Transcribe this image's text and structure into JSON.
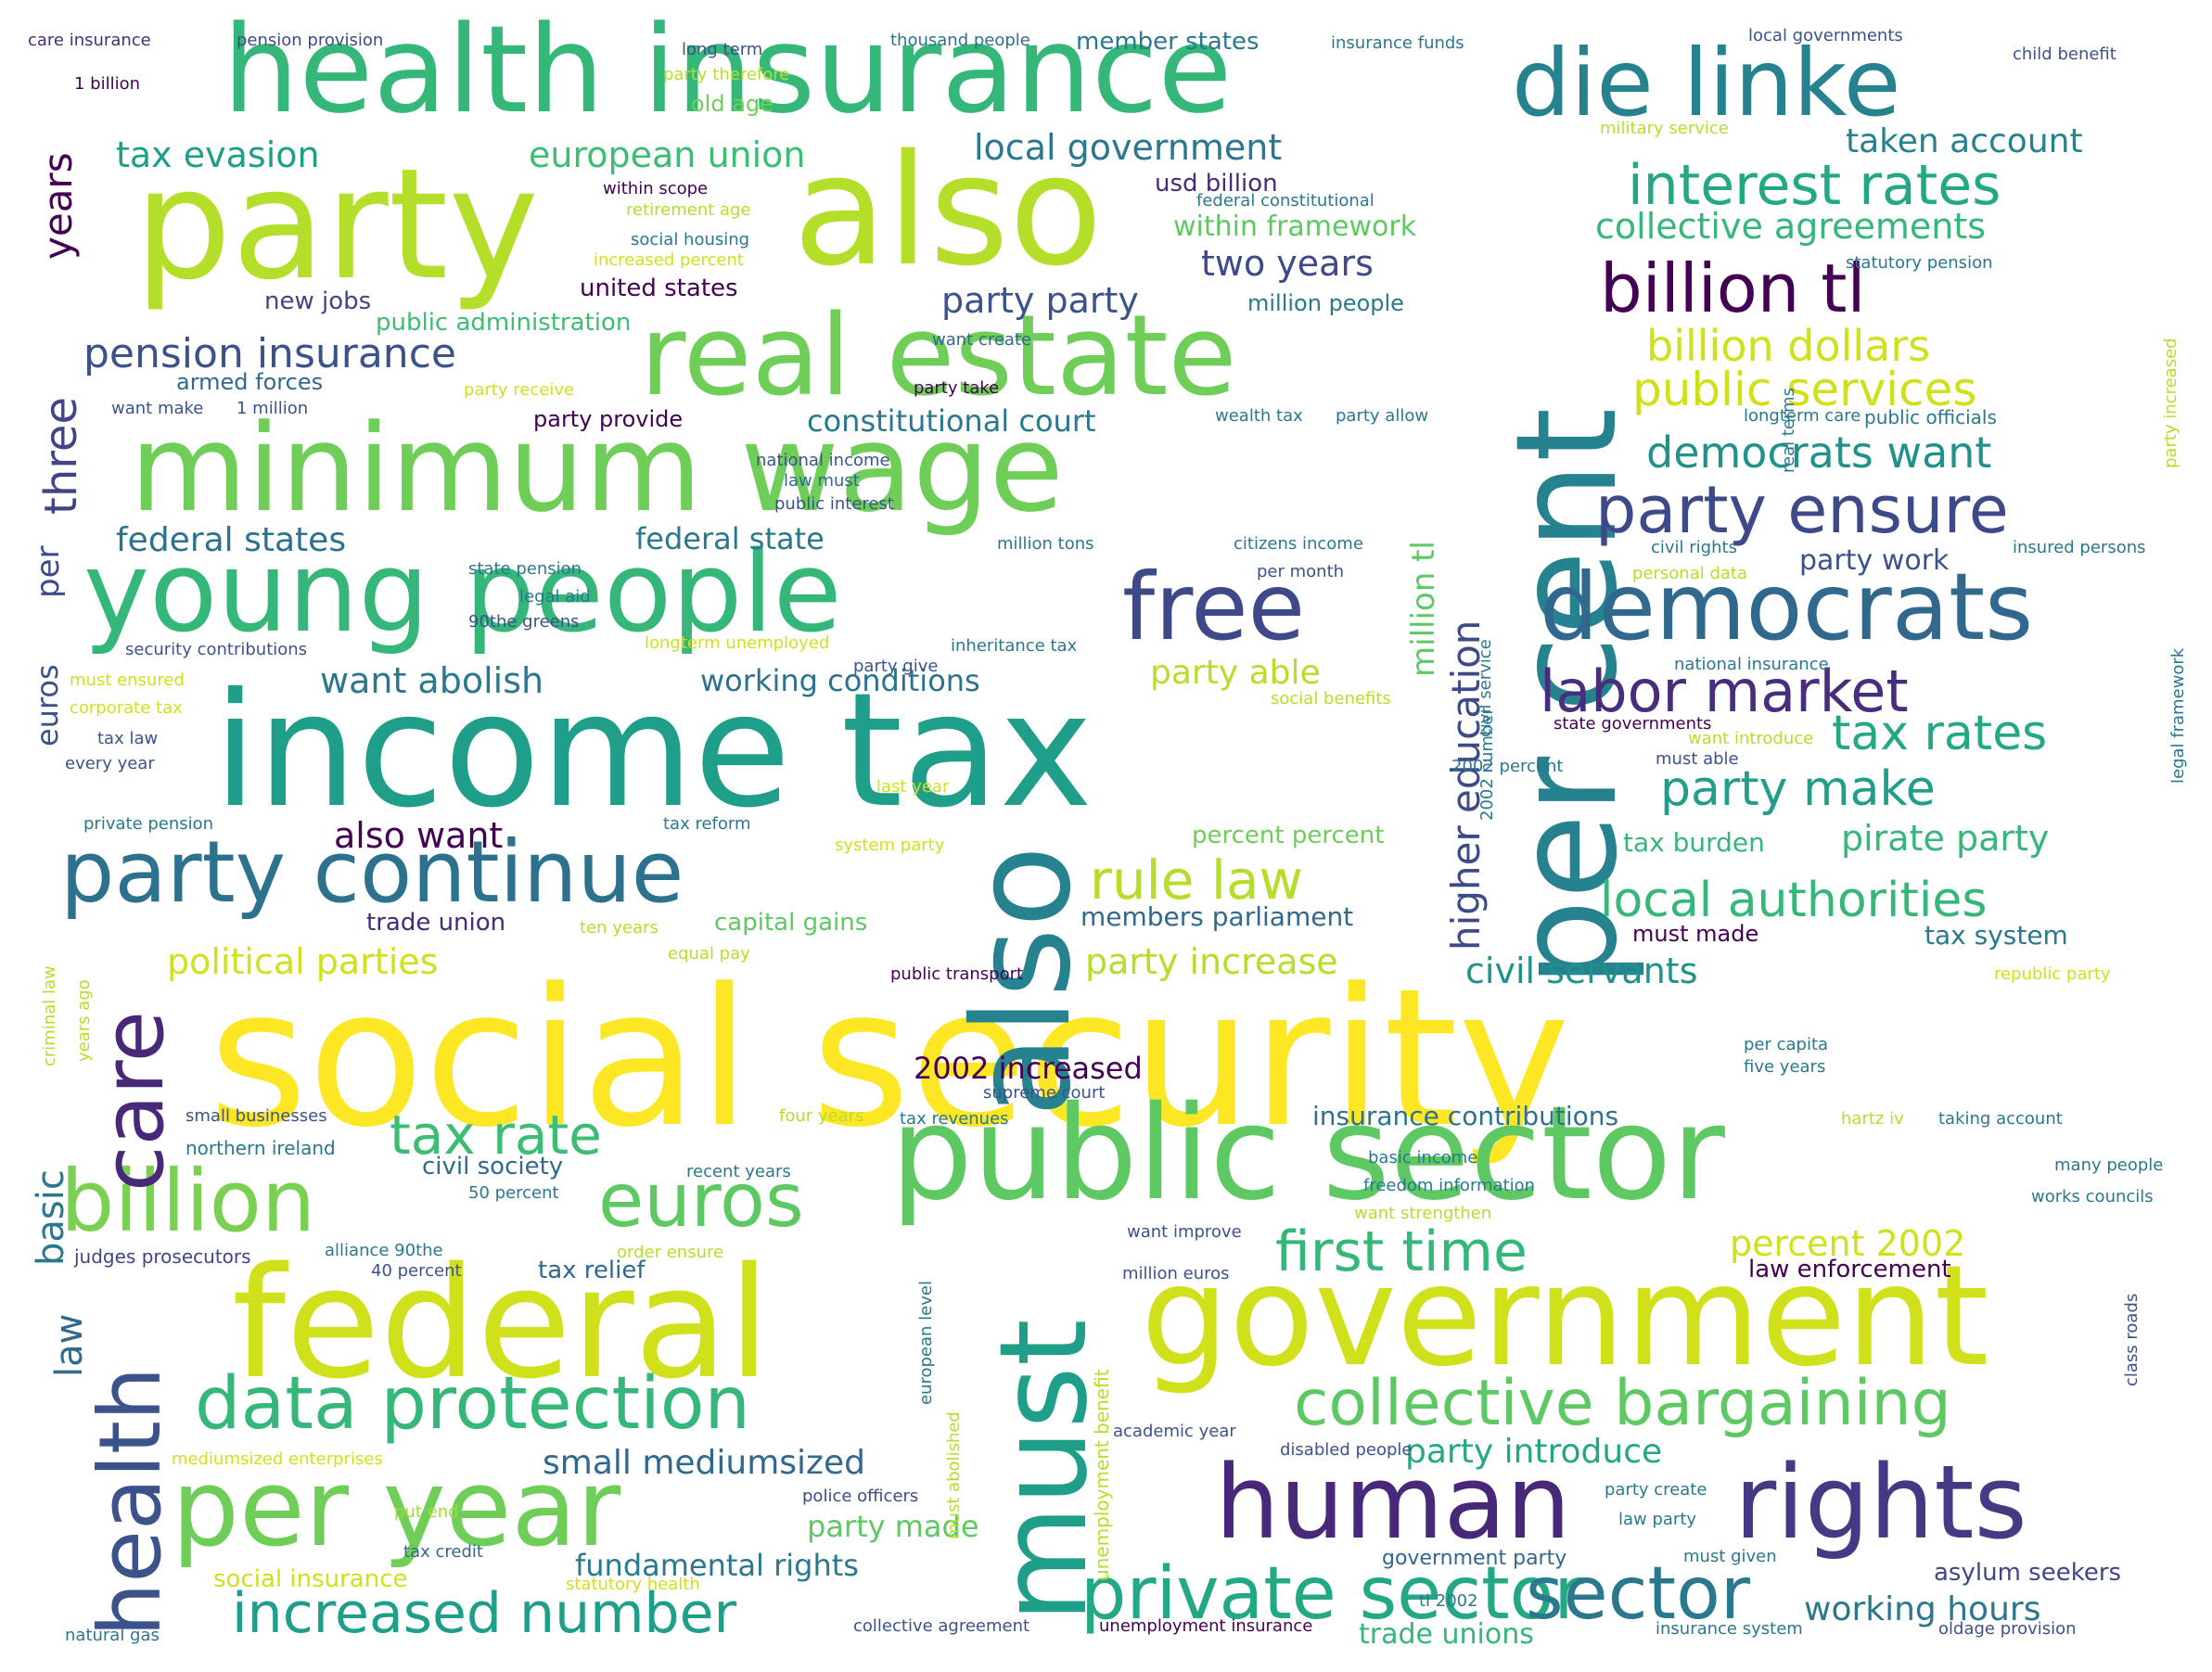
{
  "words": [
    {
      "text": "social security",
      "color": "#fde725"
    },
    {
      "text": "income tax",
      "color": "#1f9e89"
    },
    {
      "text": "federal",
      "color": "#d0e11c"
    },
    {
      "text": "government",
      "color": "#d0e11c"
    },
    {
      "text": "public sector",
      "color": "#5ec962"
    },
    {
      "text": "party",
      "color": "#b5de2b"
    },
    {
      "text": "also",
      "color": "#b5de2b"
    },
    {
      "text": "health insurance",
      "color": "#35b779"
    },
    {
      "text": "minimum wage",
      "color": "#6ece58"
    },
    {
      "text": "young people",
      "color": "#35b779"
    },
    {
      "text": "real estate",
      "color": "#6ece58"
    },
    {
      "text": "per cent",
      "color": "#26828e"
    },
    {
      "text": "also",
      "color": "#26828e"
    },
    {
      "text": "must",
      "color": "#1f9e89"
    },
    {
      "text": "die linke",
      "color": "#26828e"
    },
    {
      "text": "democrats",
      "color": "#31688e"
    },
    {
      "text": "free",
      "color": "#3e4989"
    },
    {
      "text": "human",
      "color": "#482878"
    },
    {
      "text": "rights",
      "color": "#443983"
    },
    {
      "text": "per year",
      "color": "#6ece58"
    },
    {
      "text": "party continue",
      "color": "#2c728e"
    },
    {
      "text": "billion",
      "color": "#7ad151"
    },
    {
      "text": "euros",
      "color": "#5ec962"
    },
    {
      "text": "data protection",
      "color": "#35b779"
    },
    {
      "text": "collective bargaining",
      "color": "#5ec962"
    },
    {
      "text": "private sector",
      "color": "#22a884"
    },
    {
      "text": "sector",
      "color": "#2a788e"
    },
    {
      "text": "health",
      "color": "#3b528b"
    },
    {
      "text": "care",
      "color": "#482878"
    },
    {
      "text": "billion tl",
      "color": "#440154"
    },
    {
      "text": "party ensure",
      "color": "#3e4989"
    },
    {
      "text": "labor market",
      "color": "#472d7b"
    },
    {
      "text": "interest rates",
      "color": "#22a884"
    },
    {
      "text": "increased number",
      "color": "#1f9e89"
    },
    {
      "text": "first time",
      "color": "#35b779"
    },
    {
      "text": "tax rate",
      "color": "#3dbc74"
    },
    {
      "text": "local authorities",
      "color": "#35b779"
    },
    {
      "text": "party make",
      "color": "#1f9e89"
    },
    {
      "text": "tax rates",
      "color": "#22a884"
    },
    {
      "text": "rule law",
      "color": "#b5de2b"
    },
    {
      "text": "pension insurance",
      "color": "#3b528b"
    },
    {
      "text": "democrats want",
      "color": "#21918c"
    },
    {
      "text": "public services",
      "color": "#d0e11c"
    },
    {
      "text": "billion dollars",
      "color": "#d0e11c"
    },
    {
      "text": "collective agreements",
      "color": "#35b779"
    },
    {
      "text": "tax evasion",
      "color": "#1f9e89"
    },
    {
      "text": "european union",
      "color": "#3dbc74"
    },
    {
      "text": "local government",
      "color": "#2a788e"
    },
    {
      "text": "taken account",
      "color": "#26828e"
    },
    {
      "text": "years",
      "color": "#440154"
    },
    {
      "text": "three",
      "color": "#414487"
    },
    {
      "text": "per",
      "color": "#3e4989"
    },
    {
      "text": "euros",
      "color": "#3b528b"
    },
    {
      "text": "basic",
      "color": "#2a788e"
    },
    {
      "text": "law",
      "color": "#31688e"
    },
    {
      "text": "party party",
      "color": "#3b528b"
    },
    {
      "text": "two years",
      "color": "#3e4989"
    },
    {
      "text": "within framework",
      "color": "#5ec962"
    },
    {
      "text": "usd billion",
      "color": "#482878"
    },
    {
      "text": "want abolish",
      "color": "#2a788e"
    },
    {
      "text": "federal states",
      "color": "#2c728e"
    },
    {
      "text": "federal state",
      "color": "#2a788e"
    },
    {
      "text": "political parties",
      "color": "#d0e11c"
    },
    {
      "text": "also want",
      "color": "#440154"
    },
    {
      "text": "working conditions",
      "color": "#2c728e"
    },
    {
      "text": "constitutional court",
      "color": "#2a788e"
    },
    {
      "text": "party able",
      "color": "#b5de2b"
    },
    {
      "text": "party increase",
      "color": "#b5de2b"
    },
    {
      "text": "civil servants",
      "color": "#21918c"
    },
    {
      "text": "pirate party",
      "color": "#35b779"
    },
    {
      "text": "tax system",
      "color": "#2a788e"
    },
    {
      "text": "members parliament",
      "color": "#31688e"
    },
    {
      "text": "percent 2002",
      "color": "#d0e11c"
    },
    {
      "text": "law enforcement",
      "color": "#440154"
    },
    {
      "text": "party introduce",
      "color": "#22a884"
    },
    {
      "text": "small mediumsized",
      "color": "#31688e"
    },
    {
      "text": "party made",
      "color": "#5ec962"
    },
    {
      "text": "fundamental rights",
      "color": "#2a788e"
    },
    {
      "text": "working hours",
      "color": "#2a788e"
    },
    {
      "text": "asylum seekers",
      "color": "#414487"
    },
    {
      "text": "insurance contributions",
      "color": "#2c728e"
    },
    {
      "text": "civil society",
      "color": "#31688e"
    },
    {
      "text": "tax relief",
      "color": "#31688e"
    },
    {
      "text": "2002 increased",
      "color": "#440154"
    },
    {
      "text": "higher education",
      "color": "#3e4989"
    },
    {
      "text": "million tl",
      "color": "#5ec962"
    },
    {
      "text": "social insurance",
      "color": "#d0e11c"
    },
    {
      "text": "trade unions",
      "color": "#35b779"
    },
    {
      "text": "party work",
      "color": "#3b528b"
    },
    {
      "text": "tax burden",
      "color": "#35b779"
    },
    {
      "text": "must made",
      "color": "#440154"
    },
    {
      "text": "percent percent",
      "color": "#6ece58"
    },
    {
      "text": "new jobs",
      "color": "#414487"
    },
    {
      "text": "united states",
      "color": "#440154"
    },
    {
      "text": "public administration",
      "color": "#3dbc74"
    },
    {
      "text": "member states",
      "color": "#2a788e"
    },
    {
      "text": "armed forces",
      "color": "#31688e"
    },
    {
      "text": "party provide",
      "color": "#440154"
    },
    {
      "text": "trade union",
      "color": "#482878"
    },
    {
      "text": "capital gains",
      "color": "#5ec962"
    },
    {
      "text": "old age",
      "color": "#6ece58"
    },
    {
      "text": "million people",
      "color": "#2a788e"
    },
    {
      "text": "northern ireland",
      "color": "#2a788e"
    },
    {
      "text": "judges prosecutors",
      "color": "#414487"
    },
    {
      "text": "alliance 90the",
      "color": "#2a788e"
    },
    {
      "text": "40 percent",
      "color": "#3b528b"
    },
    {
      "text": "50 percent",
      "color": "#2a788e"
    },
    {
      "text": "police officers",
      "color": "#3e4989"
    },
    {
      "text": "put end",
      "color": "#a0da39"
    },
    {
      "text": "tax credit",
      "color": "#31688e"
    },
    {
      "text": "natural gas",
      "color": "#2a788e"
    },
    {
      "text": "care insurance",
      "color": "#472d7b"
    },
    {
      "text": "1 billion",
      "color": "#440154"
    },
    {
      "text": "pension provision",
      "color": "#3e4989"
    },
    {
      "text": "long term",
      "color": "#3b528b"
    },
    {
      "text": "thousand people",
      "color": "#2c728e"
    },
    {
      "text": "insurance funds",
      "color": "#2a788e"
    },
    {
      "text": "local governments",
      "color": "#3b528b"
    },
    {
      "text": "child benefit",
      "color": "#3b528b"
    },
    {
      "text": "military service",
      "color": "#b5de2b"
    },
    {
      "text": "party therefore",
      "color": "#b5de2b"
    },
    {
      "text": "within scope",
      "color": "#440154"
    },
    {
      "text": "retirement age",
      "color": "#b5de2b"
    },
    {
      "text": "social housing",
      "color": "#2a788e"
    },
    {
      "text": "increased percent",
      "color": "#d0e11c"
    },
    {
      "text": "federal constitutional",
      "color": "#2a788e"
    },
    {
      "text": "statutory pension",
      "color": "#2a788e"
    },
    {
      "text": "want create",
      "color": "#31688e"
    },
    {
      "text": "party receive",
      "color": "#d0e11c"
    },
    {
      "text": "party take",
      "color": "#440154"
    },
    {
      "text": "want make",
      "color": "#3b528b"
    },
    {
      "text": "1 million",
      "color": "#3b528b"
    },
    {
      "text": "wealth tax",
      "color": "#2a788e"
    },
    {
      "text": "party allow",
      "color": "#2a788e"
    },
    {
      "text": "longterm care",
      "color": "#2a788e"
    },
    {
      "text": "public officials",
      "color": "#2a788e"
    },
    {
      "text": "national income",
      "color": "#3b528b"
    },
    {
      "text": "law must",
      "color": "#31688e"
    },
    {
      "text": "public interest",
      "color": "#3b528b"
    },
    {
      "text": "million tons",
      "color": "#2a788e"
    },
    {
      "text": "citizens income",
      "color": "#2a788e"
    },
    {
      "text": "civil rights",
      "color": "#2a788e"
    },
    {
      "text": "insured persons",
      "color": "#2a788e"
    },
    {
      "text": "state pension",
      "color": "#2a788e"
    },
    {
      "text": "legal aid",
      "color": "#2a788e"
    },
    {
      "text": "per month",
      "color": "#3b528b"
    },
    {
      "text": "personal data",
      "color": "#b5de2b"
    },
    {
      "text": "90the greens",
      "color": "#3b528b"
    },
    {
      "text": "security contributions",
      "color": "#3b528b"
    },
    {
      "text": "longterm unemployed",
      "color": "#d0e11c"
    },
    {
      "text": "inheritance tax",
      "color": "#2a788e"
    },
    {
      "text": "national insurance",
      "color": "#2a788e"
    },
    {
      "text": "must ensured",
      "color": "#d0e11c"
    },
    {
      "text": "corporate tax",
      "color": "#d0e11c"
    },
    {
      "text": "party give",
      "color": "#3b528b"
    },
    {
      "text": "social benefits",
      "color": "#b5de2b"
    },
    {
      "text": "state governments",
      "color": "#440154"
    },
    {
      "text": "tax law",
      "color": "#3b528b"
    },
    {
      "text": "want introduce",
      "color": "#b5de2b"
    },
    {
      "text": "must able",
      "color": "#3b528b"
    },
    {
      "text": "every year",
      "color": "#3b528b"
    },
    {
      "text": "2002 percent",
      "color": "#2a788e"
    },
    {
      "text": "last year",
      "color": "#d0e11c"
    },
    {
      "text": "private pension",
      "color": "#2a788e"
    },
    {
      "text": "tax reform",
      "color": "#2a788e"
    },
    {
      "text": "system party",
      "color": "#d0e11c"
    },
    {
      "text": "ten years",
      "color": "#b5de2b"
    },
    {
      "text": "equal pay",
      "color": "#b5de2b"
    },
    {
      "text": "public transport",
      "color": "#440154"
    },
    {
      "text": "republic party",
      "color": "#d0e11c"
    },
    {
      "text": "per capita",
      "color": "#2a788e"
    },
    {
      "text": "five years",
      "color": "#2a788e"
    },
    {
      "text": "supreme court",
      "color": "#3b528b"
    },
    {
      "text": "small businesses",
      "color": "#3b528b"
    },
    {
      "text": "four years",
      "color": "#b5de2b"
    },
    {
      "text": "tax revenues",
      "color": "#2a788e"
    },
    {
      "text": "hartz iv",
      "color": "#b5de2b"
    },
    {
      "text": "taking account",
      "color": "#2a788e"
    },
    {
      "text": "basic income",
      "color": "#2a788e"
    },
    {
      "text": "many people",
      "color": "#2a788e"
    },
    {
      "text": "freedom information",
      "color": "#2a788e"
    },
    {
      "text": "works councils",
      "color": "#2a788e"
    },
    {
      "text": "want strengthen",
      "color": "#b5de2b"
    },
    {
      "text": "recent years",
      "color": "#2a788e"
    },
    {
      "text": "want improve",
      "color": "#3b528b"
    },
    {
      "text": "order ensure",
      "color": "#b5de2b"
    },
    {
      "text": "million euros",
      "color": "#3b528b"
    },
    {
      "text": "academic year",
      "color": "#3b528b"
    },
    {
      "text": "disabled people",
      "color": "#3b528b"
    },
    {
      "text": "mediumsized enterprises",
      "color": "#d0e11c"
    },
    {
      "text": "party create",
      "color": "#2a788e"
    },
    {
      "text": "law party",
      "color": "#2a788e"
    },
    {
      "text": "government party",
      "color": "#31688e"
    },
    {
      "text": "must given",
      "color": "#2a788e"
    },
    {
      "text": "tl 2002",
      "color": "#2a788e"
    },
    {
      "text": "statutory health",
      "color": "#d0e11c"
    },
    {
      "text": "collective agreement",
      "color": "#3b528b"
    },
    {
      "text": "unemployment insurance",
      "color": "#440154"
    },
    {
      "text": "insurance system",
      "color": "#2a788e"
    },
    {
      "text": "oldage provision",
      "color": "#3b528b"
    },
    {
      "text": "civil service",
      "color": "#2a788e"
    },
    {
      "text": "2002 number",
      "color": "#2a788e"
    },
    {
      "text": "unemployment benefit",
      "color": "#b5de2b"
    },
    {
      "text": "european level",
      "color": "#2a788e"
    },
    {
      "text": "must abolished",
      "color": "#b5de2b"
    },
    {
      "text": "criminal law",
      "color": "#b5de2b"
    },
    {
      "text": "years ago",
      "color": "#b5de2b"
    },
    {
      "text": "real terms",
      "color": "#2a788e"
    },
    {
      "text": "legal framework",
      "color": "#2a788e"
    },
    {
      "text": "class roads",
      "color": "#3b528b"
    },
    {
      "text": "party increased",
      "color": "#b5de2b"
    }
  ]
}
